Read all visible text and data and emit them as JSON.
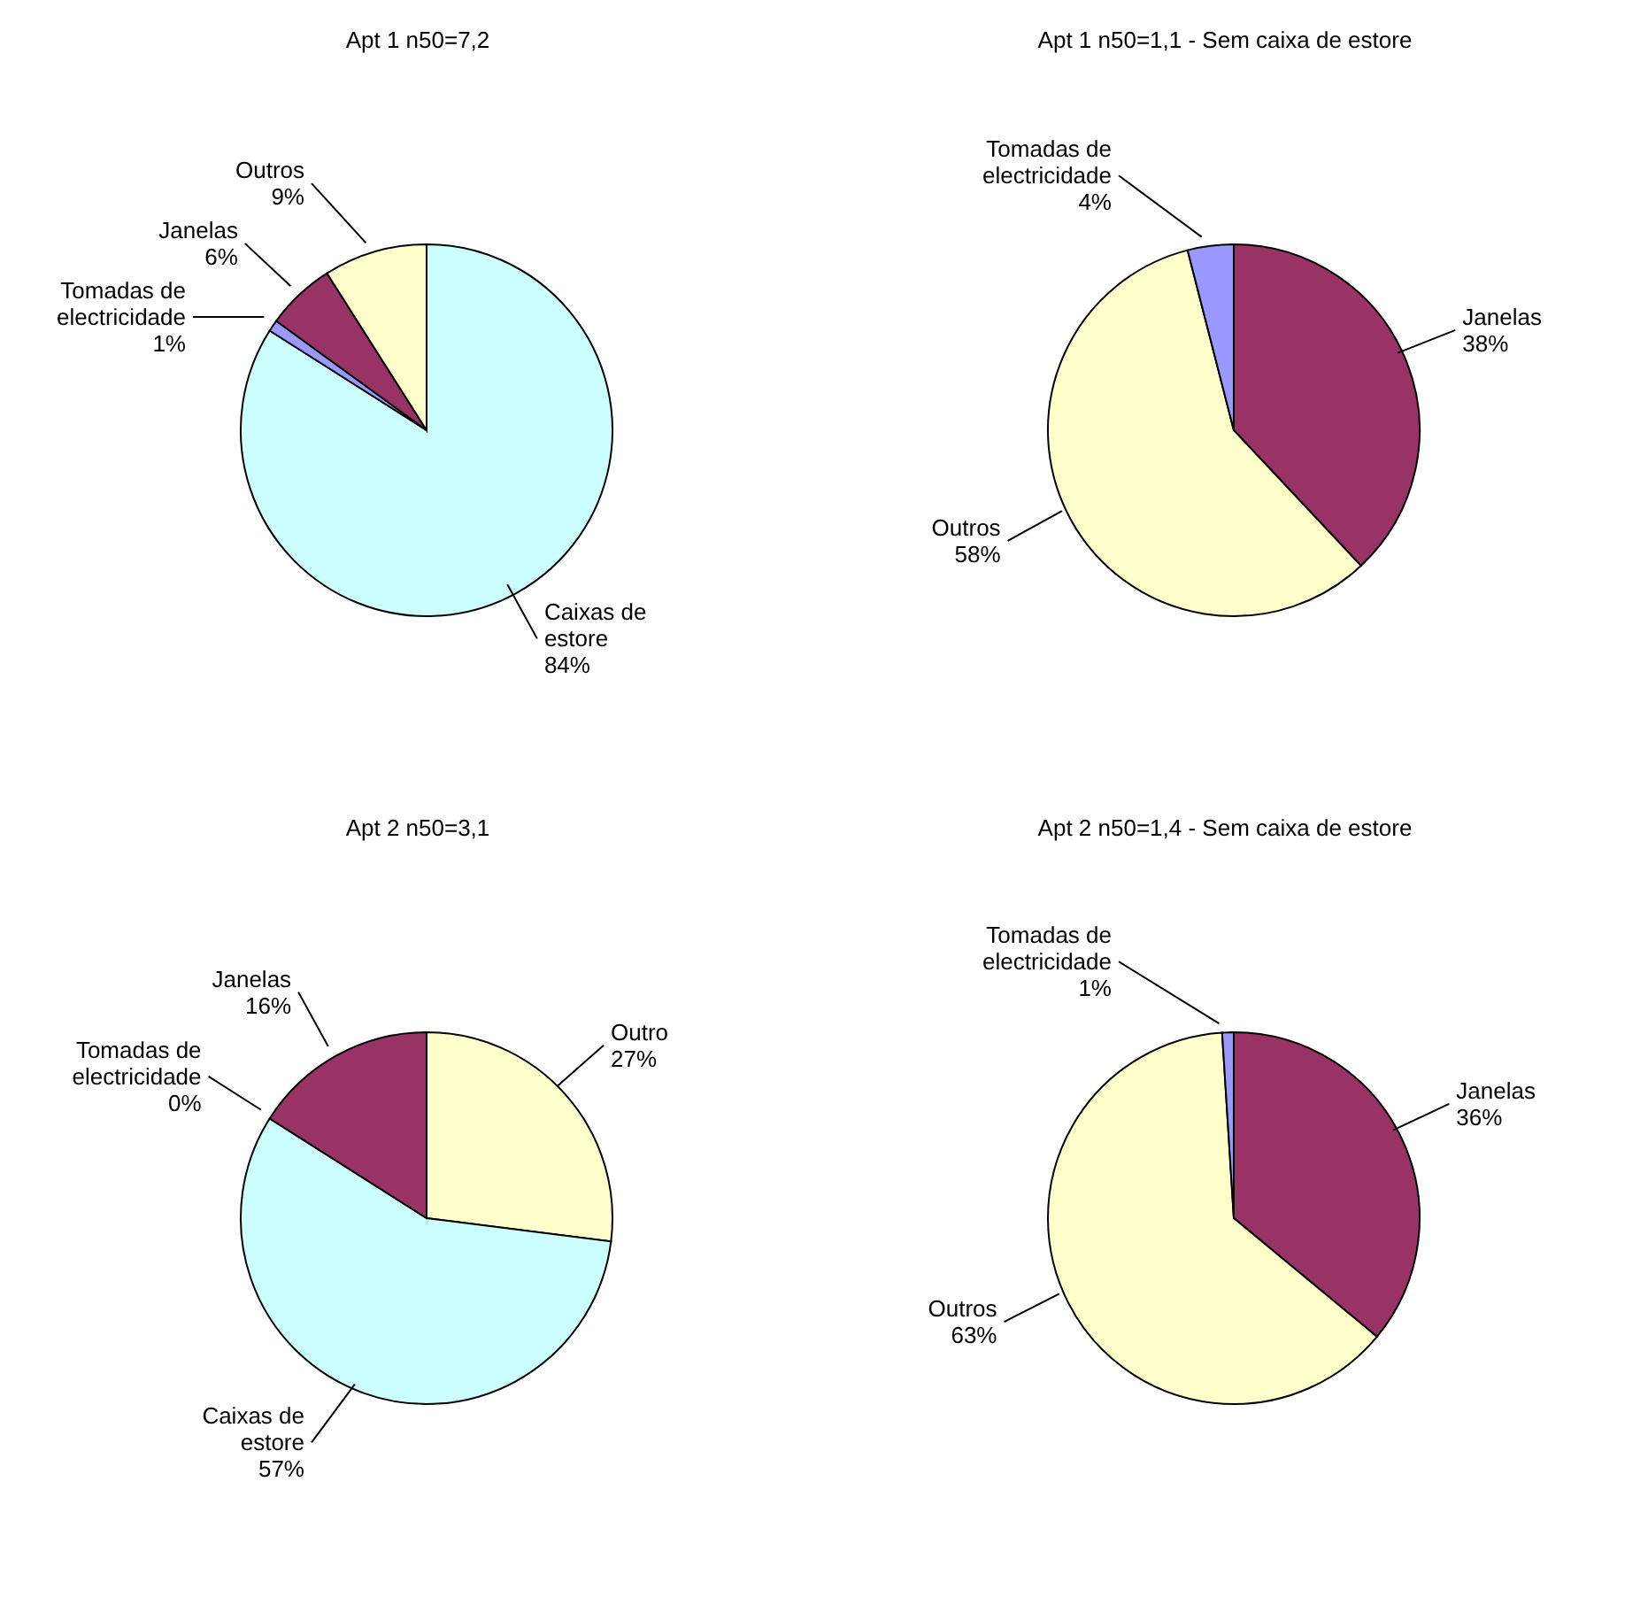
{
  "chart_data": [
    {
      "type": "pie",
      "title": "Apt 1 n50=7,2",
      "categories": [
        "Caixas de estore",
        "Tomadas de electricidade",
        "Janelas",
        "Outros"
      ],
      "values": [
        84,
        1,
        6,
        9
      ],
      "value_labels": [
        "84%",
        "1%",
        "6%",
        "9%"
      ],
      "colors": [
        "#ccffff",
        "#9999ff",
        "#993366",
        "#ffffcc"
      ]
    },
    {
      "type": "pie",
      "title": "Apt 1 n50=1,1 - Sem caixa de estore",
      "categories": [
        "Janelas",
        "Outros",
        "Tomadas de electricidade"
      ],
      "values": [
        38,
        58,
        4
      ],
      "value_labels": [
        "38%",
        "58%",
        "4%"
      ],
      "colors": [
        "#993366",
        "#ffffcc",
        "#9999ff"
      ]
    },
    {
      "type": "pie",
      "title": "Apt 2 n50=3,1",
      "categories": [
        "Outro",
        "Caixas de estore",
        "Tomadas de electricidade",
        "Janelas"
      ],
      "values": [
        27,
        57,
        0,
        16
      ],
      "value_labels": [
        "27%",
        "57%",
        "0%",
        "16%"
      ],
      "colors": [
        "#ffffcc",
        "#ccffff",
        "#9999ff",
        "#993366"
      ]
    },
    {
      "type": "pie",
      "title": "Apt 2 n50=1,4 - Sem caixa de estore",
      "categories": [
        "Janelas",
        "Outros",
        "Tomadas de electricidade"
      ],
      "values": [
        36,
        63,
        1
      ],
      "value_labels": [
        "36%",
        "63%",
        "1%"
      ],
      "colors": [
        "#993366",
        "#ffffcc",
        "#9999ff"
      ]
    }
  ]
}
